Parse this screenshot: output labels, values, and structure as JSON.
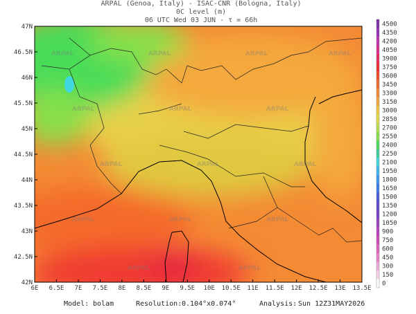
{
  "header": {
    "line1": "ARPAL (Genoa, Italy)  -  ISAC-CNR (Bologna, Italy)",
    "line2": "0C level (m)",
    "line3": "06 UTC Wed 03 JUN  -  τ = 66h"
  },
  "map": {
    "watermark": "ARPAL",
    "lat_labels": [
      "42N",
      "42.5N",
      "43N",
      "43.5N",
      "44N",
      "44.5N",
      "45N",
      "45.5N",
      "46N",
      "46.5N",
      "47N"
    ],
    "lon_labels": [
      "6E",
      "6.5E",
      "7E",
      "7.5E",
      "8E",
      "8.5E",
      "9E",
      "9.5E",
      "10E",
      "10.5E",
      "11E",
      "11.5E",
      "12E",
      "12.5E",
      "13E",
      "13.5E"
    ]
  },
  "colorbar": {
    "labels": [
      "4500",
      "4350",
      "4200",
      "4050",
      "3900",
      "3750",
      "3600",
      "3450",
      "3300",
      "3150",
      "3000",
      "2850",
      "2700",
      "2550",
      "2400",
      "2250",
      "2100",
      "1950",
      "1800",
      "1650",
      "1500",
      "1350",
      "1200",
      "1050",
      "900",
      "750",
      "600",
      "450",
      "300",
      "150",
      "0"
    ],
    "colors": [
      "#7a2fa8",
      "#9a2fb8",
      "#c030b0",
      "#d82c8c",
      "#e8285a",
      "#f02c30",
      "#f44a28",
      "#f46a2c",
      "#f48a34",
      "#f4a83c",
      "#f0c840",
      "#e0dc48",
      "#b8e048",
      "#88e048",
      "#48dc58",
      "#38d0a0",
      "#40d8e0",
      "#38b8f0",
      "#3898f0",
      "#3878f0",
      "#4858e0",
      "#6048d0",
      "#7840c8",
      "#9840c0",
      "#b840c0",
      "#d048b8",
      "#e060c0",
      "#e880c8",
      "#f0a8d8",
      "#f8d0e8",
      "#ffffff"
    ]
  },
  "footer": {
    "model_label": "Model:",
    "model": "bolam",
    "resolution_label": "Resolution:",
    "resolution": "0.104°x0.074°",
    "analysis_label": "Analysis:",
    "analysis": "Sun 12Z31MAY2026"
  }
}
